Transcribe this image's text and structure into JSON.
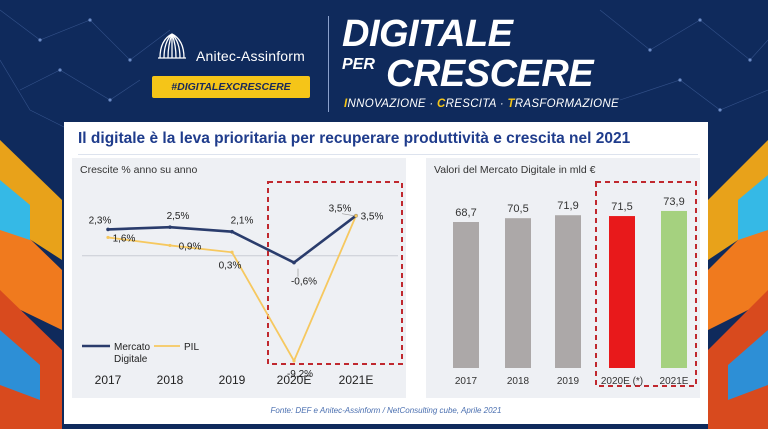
{
  "header": {
    "brand": "Anitec-Assinform",
    "hashtag": "#DIGITALEXCRESCERE",
    "title_line1": "DIGITALE",
    "title_per": "PER",
    "title_line2": "CRESCERE",
    "subtitle": [
      {
        "initial": "I",
        "rest": "NNOVAZIONE"
      },
      {
        "initial": "C",
        "rest": "RESCITA"
      },
      {
        "initial": "T",
        "rest": "RASFORMAZIONE"
      }
    ],
    "subtitle_sep": "·"
  },
  "slide": {
    "headline": "Il digitale è la leva prioritaria per recuperare produttività e crescita nel 2021",
    "source": "Fonte: DEF  e Anitec-Assinform / NetConsulting cube, Aprile  2021"
  },
  "colors": {
    "navy": "#0f2a5c",
    "yellow": "#f5c518",
    "headline_blue": "#1f3c8c",
    "mercato_line": "#2a3c6c",
    "pil_line": "#f6c85f",
    "bar_gray": "#aca8a8",
    "bar_red": "#e8191b",
    "bar_green": "#a5d17f",
    "dash_red": "#c0282e"
  },
  "chart_data": [
    {
      "type": "line",
      "title": "Crescite % anno su anno",
      "categories": [
        "2017",
        "2018",
        "2019",
        "2020E",
        "2021E"
      ],
      "series": [
        {
          "name": "Mercato Digitale",
          "values": [
            2.3,
            2.5,
            2.1,
            -0.6,
            3.5
          ],
          "labels": [
            "2,3%",
            "2,5%",
            "2,1%",
            "-0,6%",
            "3,5%"
          ]
        },
        {
          "name": "PIL",
          "values": [
            1.6,
            0.9,
            0.3,
            -9.2,
            3.5
          ],
          "labels": [
            "1,6%",
            "0,9%",
            "0,3%",
            "-9,2%",
            "3,5%"
          ]
        }
      ],
      "ylim": [
        -10,
        4
      ],
      "highlight": [
        "2020E",
        "2021E"
      ],
      "legend": "bottom-left"
    },
    {
      "type": "bar",
      "title": "Valori del Mercato Digitale in mld €",
      "categories": [
        "2017",
        "2018",
        "2019",
        "2020E (*)",
        "2021E"
      ],
      "values": [
        68.7,
        70.5,
        71.9,
        71.5,
        73.9
      ],
      "labels": [
        "68,7",
        "70,5",
        "71,9",
        "71,5",
        "73,9"
      ],
      "highlight": [
        "2020E (*)",
        "2021E"
      ],
      "ylim": [
        0,
        80
      ]
    }
  ]
}
